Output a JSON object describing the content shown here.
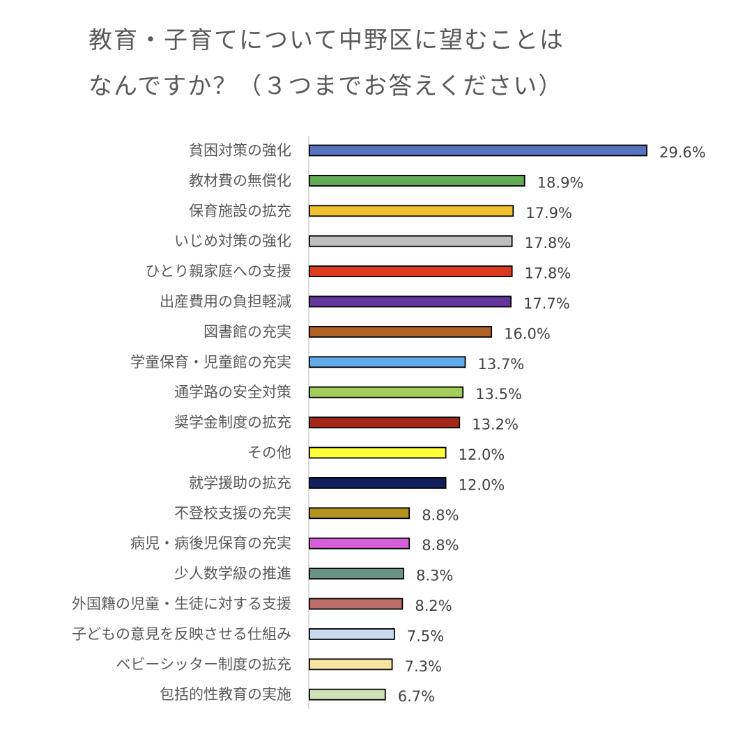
{
  "chart_data": {
    "type": "bar",
    "orientation": "horizontal",
    "title_lines": [
      "教育・子育てについて中野区に望むことは",
      "なんですか？（３つまでお答えください）"
    ],
    "xlabel": "",
    "ylabel": "",
    "xlim": [
      0,
      30
    ],
    "grid": false,
    "legend": "none",
    "unit": "%",
    "categories": [
      "貧困対策の強化",
      "教材費の無償化",
      "保育施設の拡充",
      "いじめ対策の強化",
      "ひとり親家庭への支援",
      "出産費用の負担軽減",
      "図書館の充実",
      "学童保育・児童館の充実",
      "通学路の安全対策",
      "奨学金制度の拡充",
      "その他",
      "就学援助の拡充",
      "不登校支援の充実",
      "病児・病後児保育の充実",
      "少人数学級の推進",
      "外国籍の児童・生徒に対する支援",
      "子どもの意見を反映させる仕組み",
      "ベビーシッター制度の拡充",
      "包括的性教育の実施"
    ],
    "values": [
      29.6,
      18.9,
      17.9,
      17.8,
      17.8,
      17.7,
      16.0,
      13.7,
      13.5,
      13.2,
      12.0,
      12.0,
      8.8,
      8.8,
      8.3,
      8.2,
      7.5,
      7.3,
      6.7
    ],
    "data_labels": [
      "29.6%",
      "18.9%",
      "17.9%",
      "17.8%",
      "17.8%",
      "17.7%",
      "16.0%",
      "13.7%",
      "13.5%",
      "13.2%",
      "12.0%",
      "12.0%",
      "8.8%",
      "8.8%",
      "8.3%",
      "8.2%",
      "7.5%",
      "7.3%",
      "6.7%"
    ],
    "colors": [
      "#5673c1",
      "#62aa55",
      "#f0c22e",
      "#bfbfbf",
      "#db3a1c",
      "#63379b",
      "#b06124",
      "#61acea",
      "#a5cd5c",
      "#a5271a",
      "#ffff3a",
      "#10205c",
      "#b39221",
      "#d75fda",
      "#6a9388",
      "#bc6e68",
      "#c8d9ee",
      "#f7e4a2",
      "#cfe0b8"
    ]
  }
}
